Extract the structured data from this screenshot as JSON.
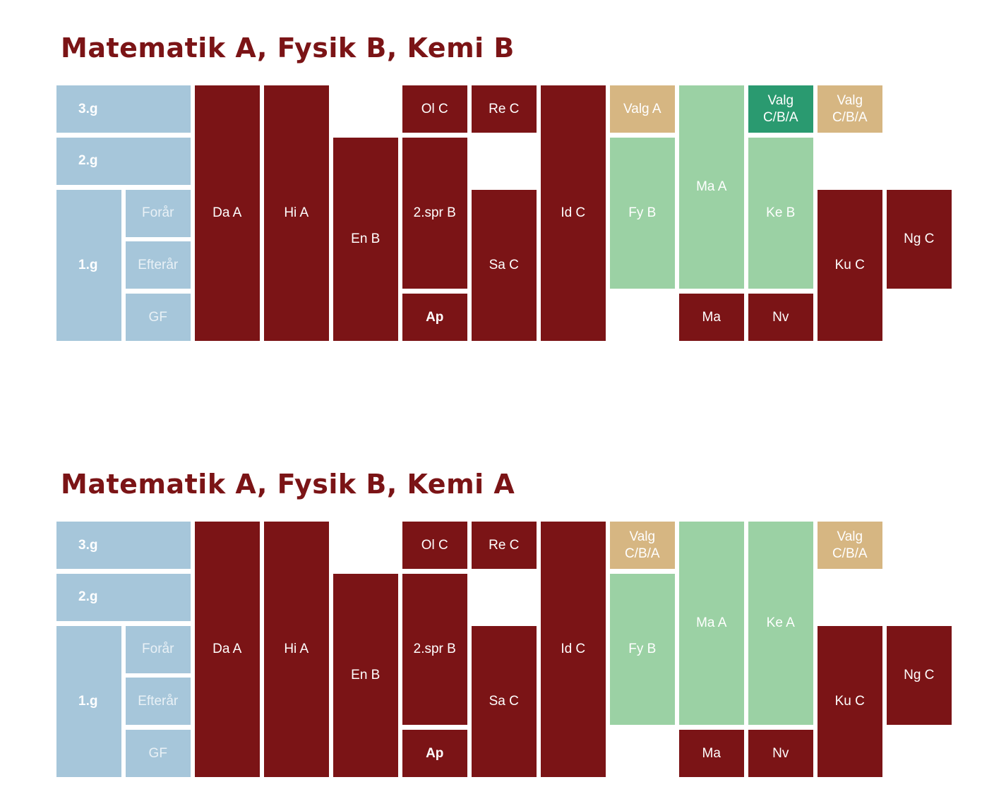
{
  "colors": {
    "blue": "#a6c6da",
    "red": "#7b1416",
    "light_green": "#9bd1a4",
    "dark_green": "#2a9a70",
    "tan": "#d6b682",
    "faint_text": "#e9f1f6",
    "white_text": "#ffffff"
  },
  "sections": [
    {
      "title": "Matematik A, Fysik B, Kemi B",
      "blocks": [
        {
          "label": "3.g",
          "color": "blue",
          "bold": true,
          "align": "left",
          "col": 0,
          "span": 2,
          "row": 0,
          "rows": 1
        },
        {
          "label": "2.g",
          "color": "blue",
          "bold": true,
          "align": "left",
          "col": 0,
          "span": 2,
          "row": 1,
          "rows": 1
        },
        {
          "label": "1.g",
          "color": "blue",
          "bold": true,
          "align": "left",
          "col": 0,
          "span": 1,
          "row": 2,
          "rows": 3
        },
        {
          "label": "Forår",
          "color": "blue",
          "text": "faint_text",
          "col": 1,
          "span": 1,
          "row": 2,
          "rows": 1
        },
        {
          "label": "Efterår",
          "color": "blue",
          "text": "faint_text",
          "col": 1,
          "span": 1,
          "row": 3,
          "rows": 1
        },
        {
          "label": "GF",
          "color": "blue",
          "text": "faint_text",
          "col": 1,
          "span": 1,
          "row": 4,
          "rows": 1
        },
        {
          "label": "Da A",
          "color": "red",
          "col": 2,
          "span": 1,
          "row": 0,
          "rows": 5
        },
        {
          "label": "Hi A",
          "color": "red",
          "col": 3,
          "span": 1,
          "row": 0,
          "rows": 5
        },
        {
          "label": "En B",
          "color": "red",
          "col": 4,
          "span": 1,
          "row": 1,
          "rows": 4
        },
        {
          "label": "Ol C",
          "color": "red",
          "col": 5,
          "span": 1,
          "row": 0,
          "rows": 1
        },
        {
          "label": "2.spr B",
          "color": "red",
          "col": 5,
          "span": 1,
          "row": 1,
          "rows": 3
        },
        {
          "label": "Ap",
          "color": "red",
          "bold": true,
          "col": 5,
          "span": 1,
          "row": 4,
          "rows": 1
        },
        {
          "label": "Re C",
          "color": "red",
          "col": 6,
          "span": 1,
          "row": 0,
          "rows": 1
        },
        {
          "label": "Sa C",
          "color": "red",
          "col": 6,
          "span": 1,
          "row": 2,
          "rows": 3
        },
        {
          "label": "Id C",
          "color": "red",
          "col": 7,
          "span": 1,
          "row": 0,
          "rows": 5
        },
        {
          "label": "Valg A",
          "color": "tan",
          "col": 8,
          "span": 1,
          "row": 0,
          "rows": 1
        },
        {
          "label": "Fy B",
          "color": "light_green",
          "col": 8,
          "span": 1,
          "row": 1,
          "rows": 3
        },
        {
          "label": "Ma A",
          "color": "light_green",
          "col": 9,
          "span": 1,
          "row": 0,
          "rows": 4
        },
        {
          "label": "Ma",
          "color": "red",
          "col": 9,
          "span": 1,
          "row": 4,
          "rows": 1
        },
        {
          "label": "Valg\nC/B/A",
          "color": "dark_green",
          "col": 10,
          "span": 1,
          "row": 0,
          "rows": 1
        },
        {
          "label": "Ke B",
          "color": "light_green",
          "col": 10,
          "span": 1,
          "row": 1,
          "rows": 3
        },
        {
          "label": "Nv",
          "color": "red",
          "col": 10,
          "span": 1,
          "row": 4,
          "rows": 1
        },
        {
          "label": "Valg\nC/B/A",
          "color": "tan",
          "col": 11,
          "span": 1,
          "row": 0,
          "rows": 1
        },
        {
          "label": "Ku C",
          "color": "red",
          "col": 11,
          "span": 1,
          "row": 2,
          "rows": 3
        },
        {
          "label": "Ng C",
          "color": "red",
          "col": 12,
          "span": 1,
          "row": 2,
          "rows": 2
        }
      ]
    },
    {
      "title": "Matematik A, Fysik B, Kemi A",
      "blocks": [
        {
          "label": "3.g",
          "color": "blue",
          "bold": true,
          "align": "left",
          "col": 0,
          "span": 2,
          "row": 0,
          "rows": 1
        },
        {
          "label": "2.g",
          "color": "blue",
          "bold": true,
          "align": "left",
          "col": 0,
          "span": 2,
          "row": 1,
          "rows": 1
        },
        {
          "label": "1.g",
          "color": "blue",
          "bold": true,
          "align": "left",
          "col": 0,
          "span": 1,
          "row": 2,
          "rows": 3
        },
        {
          "label": "Forår",
          "color": "blue",
          "text": "faint_text",
          "col": 1,
          "span": 1,
          "row": 2,
          "rows": 1
        },
        {
          "label": "Efterår",
          "color": "blue",
          "text": "faint_text",
          "col": 1,
          "span": 1,
          "row": 3,
          "rows": 1
        },
        {
          "label": "GF",
          "color": "blue",
          "text": "faint_text",
          "col": 1,
          "span": 1,
          "row": 4,
          "rows": 1
        },
        {
          "label": "Da A",
          "color": "red",
          "col": 2,
          "span": 1,
          "row": 0,
          "rows": 5
        },
        {
          "label": "Hi A",
          "color": "red",
          "col": 3,
          "span": 1,
          "row": 0,
          "rows": 5
        },
        {
          "label": "En B",
          "color": "red",
          "col": 4,
          "span": 1,
          "row": 1,
          "rows": 4
        },
        {
          "label": "Ol C",
          "color": "red",
          "col": 5,
          "span": 1,
          "row": 0,
          "rows": 1
        },
        {
          "label": "2.spr B",
          "color": "red",
          "col": 5,
          "span": 1,
          "row": 1,
          "rows": 3
        },
        {
          "label": "Ap",
          "color": "red",
          "bold": true,
          "col": 5,
          "span": 1,
          "row": 4,
          "rows": 1
        },
        {
          "label": "Re C",
          "color": "red",
          "col": 6,
          "span": 1,
          "row": 0,
          "rows": 1
        },
        {
          "label": "Sa C",
          "color": "red",
          "col": 6,
          "span": 1,
          "row": 2,
          "rows": 3
        },
        {
          "label": "Id C",
          "color": "red",
          "col": 7,
          "span": 1,
          "row": 0,
          "rows": 5
        },
        {
          "label": "Valg\nC/B/A",
          "color": "tan",
          "col": 8,
          "span": 1,
          "row": 0,
          "rows": 1
        },
        {
          "label": "Fy B",
          "color": "light_green",
          "col": 8,
          "span": 1,
          "row": 1,
          "rows": 3
        },
        {
          "label": "Ma A",
          "color": "light_green",
          "col": 9,
          "span": 1,
          "row": 0,
          "rows": 4
        },
        {
          "label": "Ma",
          "color": "red",
          "col": 9,
          "span": 1,
          "row": 4,
          "rows": 1
        },
        {
          "label": "Ke A",
          "color": "light_green",
          "col": 10,
          "span": 1,
          "row": 0,
          "rows": 4
        },
        {
          "label": "Nv",
          "color": "red",
          "col": 10,
          "span": 1,
          "row": 4,
          "rows": 1
        },
        {
          "label": "Valg\nC/B/A",
          "color": "tan",
          "col": 11,
          "span": 1,
          "row": 0,
          "rows": 1
        },
        {
          "label": "Ku C",
          "color": "red",
          "col": 11,
          "span": 1,
          "row": 2,
          "rows": 3
        },
        {
          "label": "Ng C",
          "color": "red",
          "col": 12,
          "span": 1,
          "row": 2,
          "rows": 2
        }
      ]
    }
  ]
}
